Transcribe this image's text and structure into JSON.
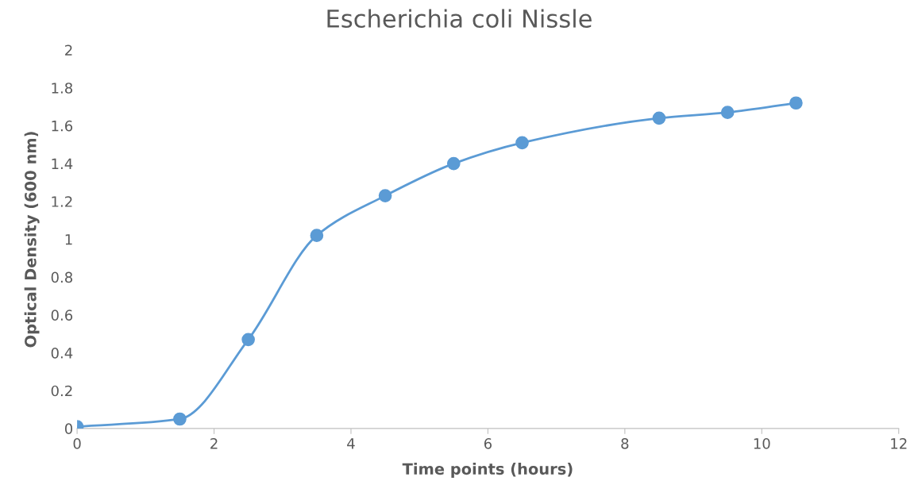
{
  "chart_data": {
    "type": "line",
    "title": "Escherichia coli Nissle",
    "xlabel": "Time points (hours)",
    "ylabel": "Optical Density (600 nm)",
    "x": [
      0,
      1.5,
      2.5,
      3.5,
      4.5,
      5.5,
      6.5,
      8.5,
      9.5,
      10.5
    ],
    "series": [
      {
        "color": "#5b9bd5",
        "values": [
          0.01,
          0.05,
          0.47,
          1.02,
          1.23,
          1.4,
          1.51,
          1.64,
          1.67,
          1.72
        ]
      }
    ],
    "xlim": [
      0,
      12
    ],
    "xticks": [
      0,
      2,
      4,
      6,
      8,
      10,
      12
    ],
    "ylim": [
      0,
      2
    ],
    "yticks": [
      0,
      0.2,
      0.4,
      0.6,
      0.8,
      1,
      1.2,
      1.4,
      1.6,
      1.8,
      2
    ],
    "grid": false,
    "legend": false,
    "marker": "circle",
    "line_style": "solid"
  }
}
